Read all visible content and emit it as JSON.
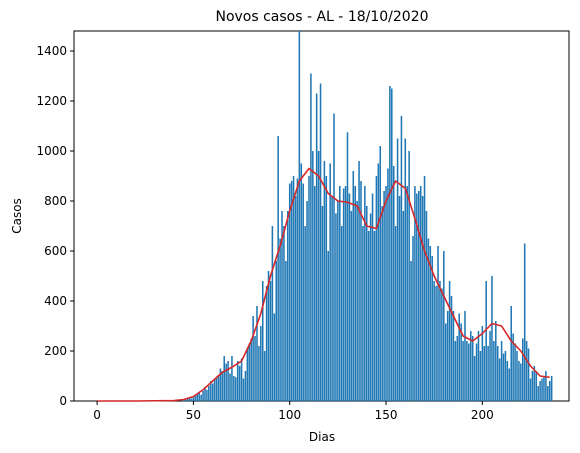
{
  "chart_data": {
    "type": "bar",
    "title": "Novos casos - AL - 18/10/2020",
    "xlabel": "Dias",
    "ylabel": "Casos",
    "xlim": [
      -12,
      245
    ],
    "ylim": [
      0,
      1480
    ],
    "xticks": [
      0,
      50,
      100,
      150,
      200
    ],
    "yticks": [
      0,
      200,
      400,
      600,
      800,
      1000,
      1200,
      1400
    ],
    "grid": false,
    "legend": "none",
    "bar_color": "#1f77b4",
    "line_color": "#d62728",
    "series": [
      {
        "kind": "bar",
        "x_start": 0,
        "values": [
          0,
          0,
          0,
          0,
          0,
          0,
          0,
          0,
          0,
          0,
          0,
          0,
          0,
          0,
          0,
          0,
          0,
          0,
          0,
          0,
          0,
          0,
          0,
          0,
          0,
          0,
          0,
          0,
          0,
          0,
          0,
          0,
          0,
          0,
          0,
          0,
          0,
          0,
          0,
          0,
          0,
          0,
          0,
          0,
          2,
          3,
          5,
          8,
          12,
          10,
          15,
          20,
          28,
          35,
          25,
          40,
          55,
          45,
          60,
          80,
          70,
          85,
          90,
          100,
          130,
          120,
          180,
          150,
          160,
          110,
          180,
          100,
          95,
          160,
          140,
          170,
          90,
          120,
          210,
          230,
          250,
          340,
          260,
          380,
          220,
          300,
          480,
          200,
          460,
          520,
          480,
          700,
          350,
          560,
          1060,
          650,
          760,
          700,
          560,
          760,
          870,
          880,
          900,
          820,
          890,
          1480,
          950,
          870,
          700,
          800,
          900,
          1310,
          1000,
          860,
          1230,
          1000,
          1270,
          780,
          960,
          900,
          600,
          950,
          820,
          1150,
          750,
          800,
          860,
          700,
          850,
          860,
          1075,
          830,
          760,
          920,
          860,
          800,
          960,
          880,
          700,
          860,
          780,
          680,
          750,
          830,
          680,
          900,
          950,
          1020,
          780,
          840,
          860,
          930,
          1260,
          1250,
          940,
          700,
          1050,
          820,
          1140,
          760,
          1050,
          860,
          1000,
          560,
          660,
          860,
          830,
          840,
          860,
          820,
          900,
          760,
          650,
          620,
          580,
          480,
          460,
          620,
          480,
          450,
          600,
          310,
          360,
          480,
          420,
          360,
          240,
          260,
          350,
          310,
          240,
          360,
          240,
          230,
          280,
          260,
          180,
          230,
          280,
          200,
          300,
          220,
          480,
          220,
          280,
          500,
          240,
          320,
          220,
          170,
          240,
          190,
          200,
          160,
          130,
          380,
          270,
          230,
          200,
          160,
          150,
          250,
          630,
          240,
          210,
          90,
          120,
          140,
          120,
          60,
          80,
          90,
          100,
          120,
          60,
          80,
          100
        ]
      },
      {
        "kind": "line",
        "x": [
          0,
          20,
          40,
          45,
          50,
          55,
          60,
          65,
          70,
          75,
          80,
          85,
          90,
          95,
          100,
          105,
          110,
          115,
          120,
          125,
          130,
          135,
          140,
          145,
          150,
          155,
          160,
          165,
          170,
          175,
          180,
          185,
          190,
          195,
          200,
          205,
          210,
          215,
          220,
          225,
          230,
          235
        ],
        "y": [
          0,
          0,
          2,
          6,
          18,
          45,
          80,
          115,
          135,
          160,
          240,
          350,
          500,
          620,
          760,
          880,
          930,
          900,
          830,
          800,
          795,
          780,
          700,
          690,
          800,
          880,
          850,
          730,
          600,
          500,
          420,
          340,
          260,
          240,
          270,
          310,
          300,
          240,
          200,
          140,
          100,
          95
        ]
      }
    ]
  }
}
